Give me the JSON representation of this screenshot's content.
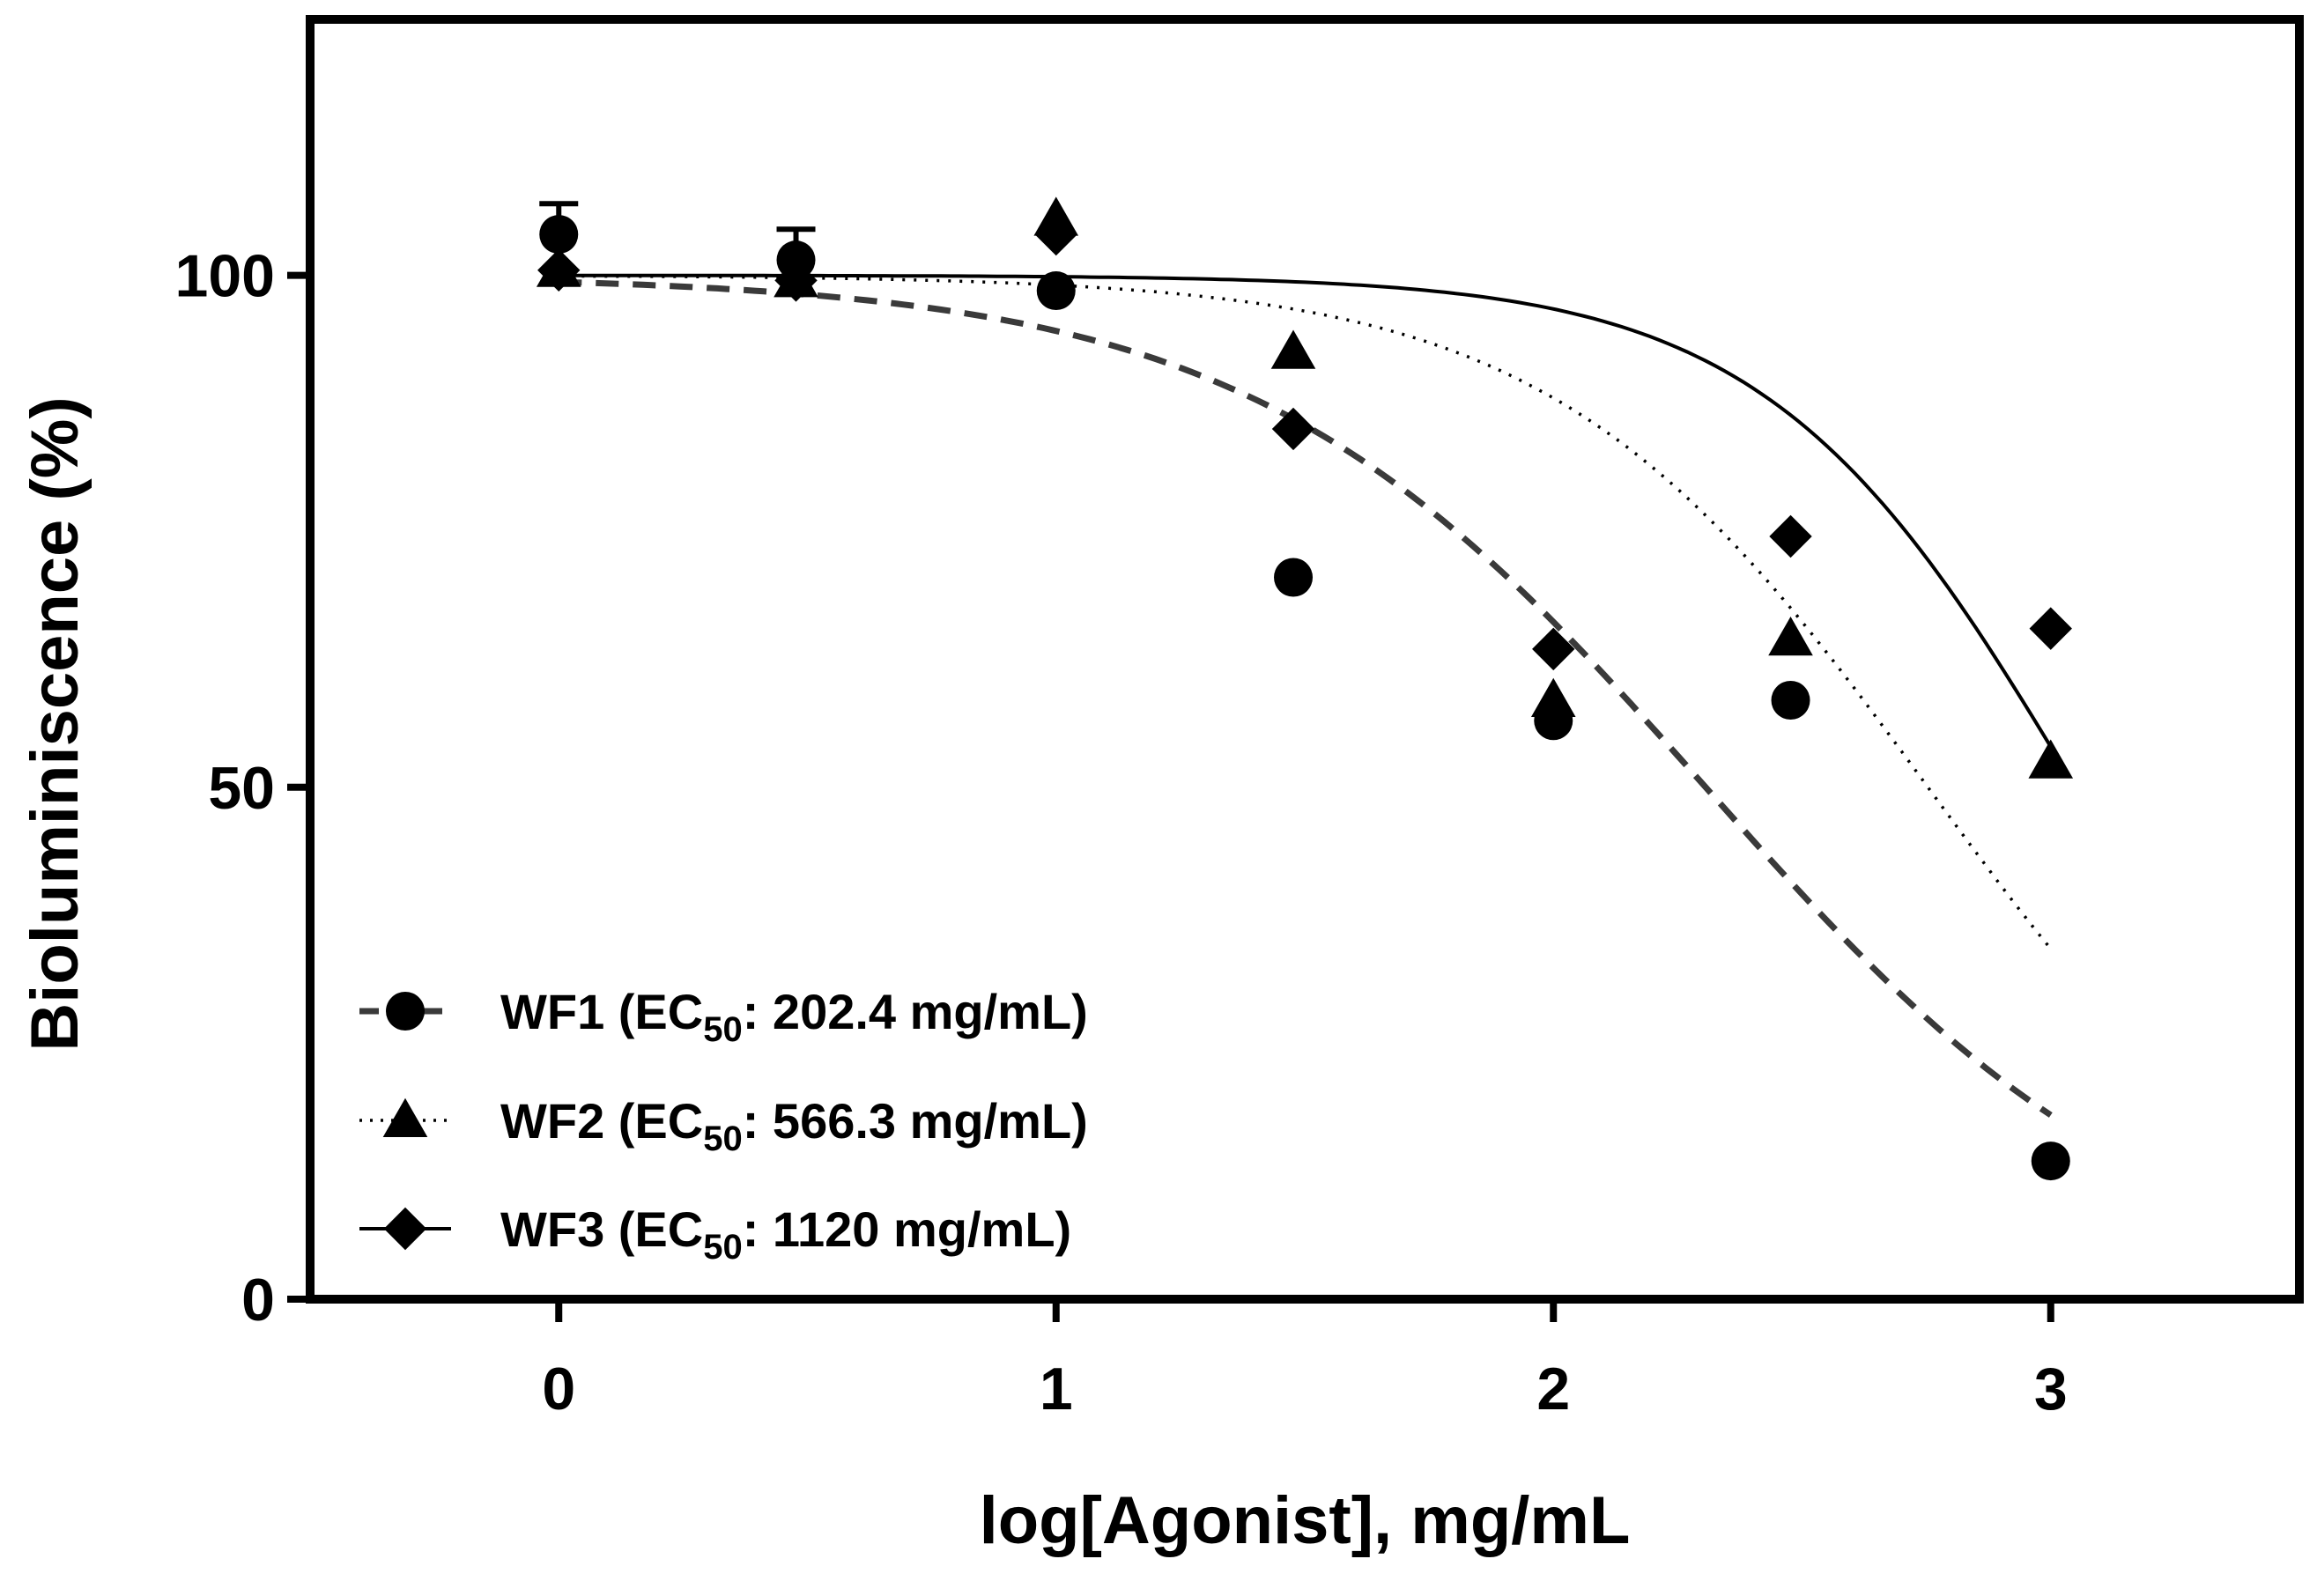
{
  "chart_data": {
    "type": "scatter",
    "title": "",
    "xlabel": "log[Agonist], mg/mL",
    "ylabel": "Bioluminiscence (%)",
    "xlim": [
      -0.5,
      3.5
    ],
    "ylim": [
      0,
      125
    ],
    "xticks": [
      0,
      1,
      2,
      3
    ],
    "yticks": [
      0,
      50,
      100
    ],
    "xtick_labels": [
      "0",
      "1",
      "2",
      "3"
    ],
    "ytick_labels": [
      "0",
      "50",
      "100"
    ],
    "grid": false,
    "legend_position": "bottom-left",
    "series": [
      {
        "name": "WF1",
        "legend_prefix": "WF1 (EC",
        "legend_sub": "50",
        "legend_suffix": ": 202.4 mg/mL)",
        "marker": "circle",
        "line_style": "dashed",
        "line_color": "#3a3a3a",
        "ec50": 202.4,
        "hill": 0.95,
        "x": [
          0,
          0.477,
          1,
          1.477,
          2,
          2.477,
          3
        ],
        "y": [
          104,
          101.5,
          98.5,
          70.5,
          56.5,
          58.5,
          13.5
        ],
        "error": [
          3,
          3,
          0,
          0,
          0,
          0,
          0
        ]
      },
      {
        "name": "WF2",
        "legend_prefix": "WF2 (EC",
        "legend_sub": "50",
        "legend_suffix": ": 566.3 mg/mL)",
        "marker": "triangle",
        "line_style": "dotted",
        "line_color": "#000000",
        "ec50": 566.3,
        "hill": 1.15,
        "x": [
          0,
          0.477,
          1,
          1.477,
          2,
          2.477,
          3
        ],
        "y": [
          100.5,
          99.5,
          105.5,
          92.5,
          58.5,
          64.5,
          52.5
        ],
        "error": [
          0,
          0,
          0,
          0,
          0,
          0,
          0
        ]
      },
      {
        "name": "WF3",
        "legend_prefix": "WF3 (EC",
        "legend_sub": "50",
        "legend_suffix": ": 1120 mg/mL)",
        "marker": "diamond",
        "line_style": "solid",
        "line_color": "#000000",
        "ec50": 1120,
        "hill": 1.4,
        "x": [
          0,
          0.477,
          1,
          1.477,
          2,
          2.477,
          3
        ],
        "y": [
          100.5,
          99.5,
          104,
          85,
          63.5,
          74.5,
          65.5
        ],
        "error": [
          0,
          0,
          0,
          0,
          0,
          0,
          0
        ]
      }
    ]
  }
}
